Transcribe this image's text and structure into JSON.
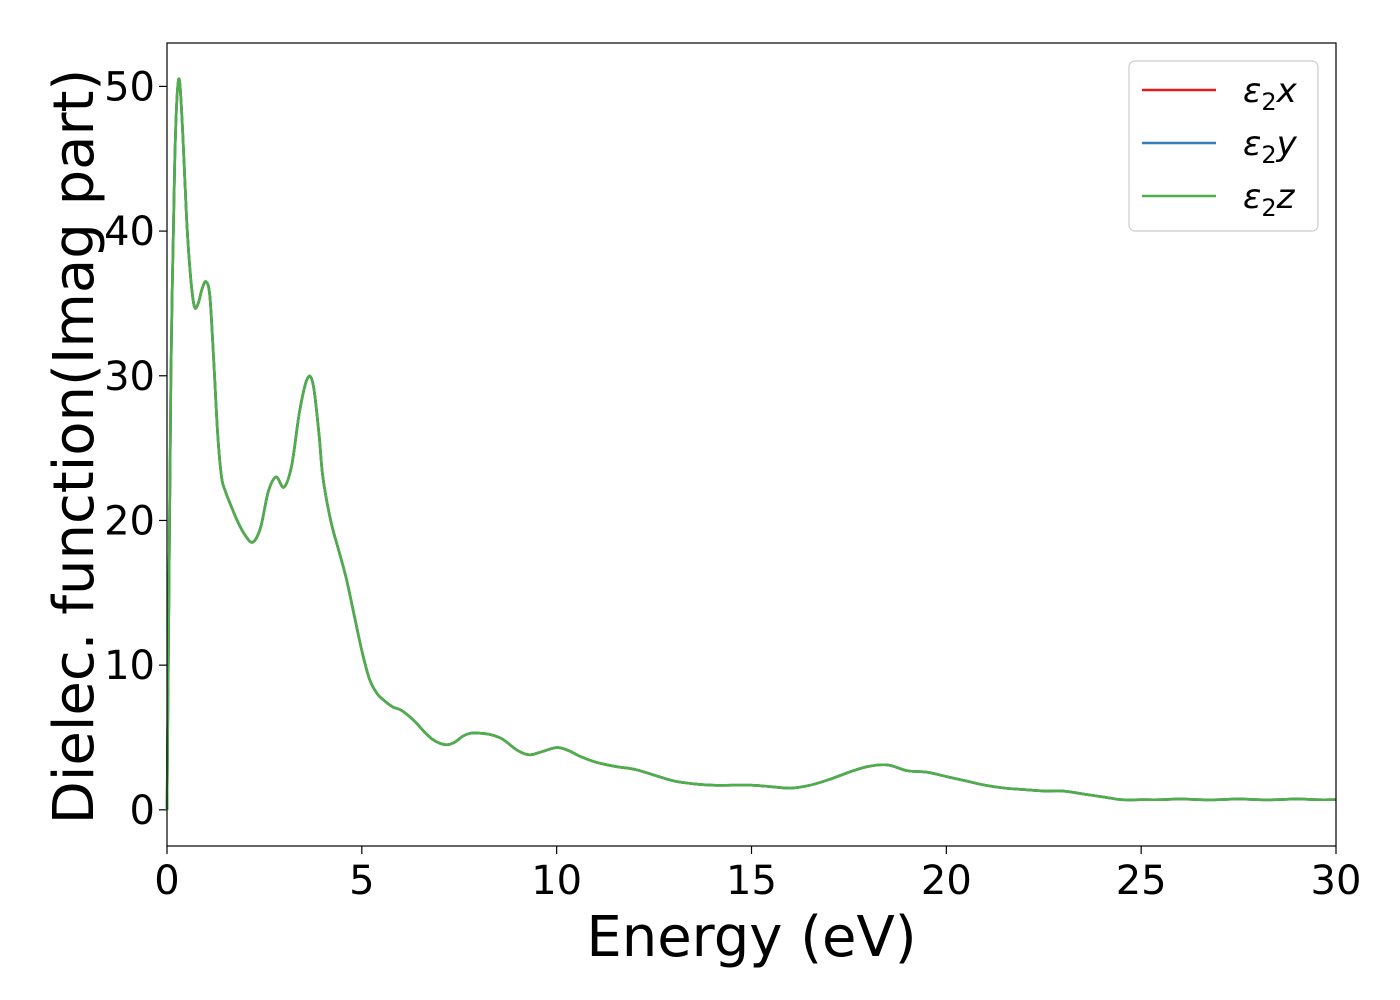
{
  "chart_data": {
    "type": "line",
    "xlabel": "Energy (eV)",
    "ylabel": "Dielec. function(Imag part)",
    "xlim": [
      0,
      30
    ],
    "ylim": [
      -2.5,
      53
    ],
    "xticks": [
      0,
      5,
      10,
      15,
      20,
      25,
      30
    ],
    "yticks": [
      0,
      10,
      20,
      30,
      40,
      50
    ],
    "legend_position": "top-right",
    "series": [
      {
        "name": "ε₂x",
        "legend_base": "ε",
        "legend_sub": "2",
        "legend_var": "x",
        "color": "#e41a1c"
      },
      {
        "name": "ε₂y",
        "legend_base": "ε",
        "legend_sub": "2",
        "legend_var": "y",
        "color": "#377eb8"
      },
      {
        "name": "ε₂z",
        "legend_base": "ε",
        "legend_sub": "2",
        "legend_var": "z",
        "color": "#4daf4a"
      }
    ],
    "x": [
      0,
      0.05,
      0.1,
      0.2,
      0.3,
      0.4,
      0.5,
      0.6,
      0.7,
      0.8,
      0.9,
      1.0,
      1.1,
      1.2,
      1.3,
      1.4,
      1.5,
      1.6,
      1.8,
      2.0,
      2.2,
      2.4,
      2.6,
      2.8,
      3.0,
      3.2,
      3.4,
      3.6,
      3.75,
      3.9,
      4.0,
      4.2,
      4.4,
      4.6,
      4.8,
      5.0,
      5.2,
      5.4,
      5.6,
      5.8,
      6.0,
      6.2,
      6.4,
      6.6,
      6.8,
      7.0,
      7.2,
      7.4,
      7.6,
      7.8,
      8.0,
      8.3,
      8.6,
      9.0,
      9.3,
      9.6,
      10.0,
      10.3,
      10.6,
      11.0,
      11.5,
      12.0,
      12.5,
      13.0,
      13.5,
      14.0,
      14.5,
      15.0,
      15.5,
      16.0,
      16.5,
      17.0,
      17.5,
      18.0,
      18.5,
      19.0,
      19.5,
      20.0,
      20.5,
      21.0,
      21.5,
      22.0,
      22.5,
      23.0,
      23.5,
      24.0,
      24.5,
      25.0,
      25.5,
      26.0,
      26.5,
      27.0,
      27.5,
      28.0,
      28.5,
      29.0,
      29.5,
      30.0
    ],
    "y": [
      0,
      15,
      30,
      45,
      50.5,
      47,
      41,
      37,
      34.8,
      35,
      36,
      36.5,
      35.5,
      31,
      26,
      23,
      22,
      21.3,
      20,
      19,
      18.5,
      19.5,
      22,
      23,
      22.3,
      23.8,
      27.5,
      29.8,
      29.4,
      26,
      23,
      20,
      18,
      16,
      13.5,
      11,
      9,
      8,
      7.5,
      7.1,
      6.9,
      6.5,
      6,
      5.4,
      4.9,
      4.6,
      4.5,
      4.7,
      5.1,
      5.3,
      5.3,
      5.2,
      4.9,
      4.1,
      3.8,
      4,
      4.3,
      4.1,
      3.7,
      3.3,
      3,
      2.8,
      2.4,
      2.0,
      1.8,
      1.7,
      1.7,
      1.7,
      1.6,
      1.5,
      1.7,
      2.1,
      2.6,
      3.0,
      3.1,
      2.7,
      2.6,
      2.3,
      2.0,
      1.7,
      1.5,
      1.4,
      1.3,
      1.3,
      1.1,
      0.9,
      0.7,
      0.7,
      0.7,
      0.75,
      0.7,
      0.7,
      0.75,
      0.7,
      0.7,
      0.75,
      0.7,
      0.7
    ]
  }
}
